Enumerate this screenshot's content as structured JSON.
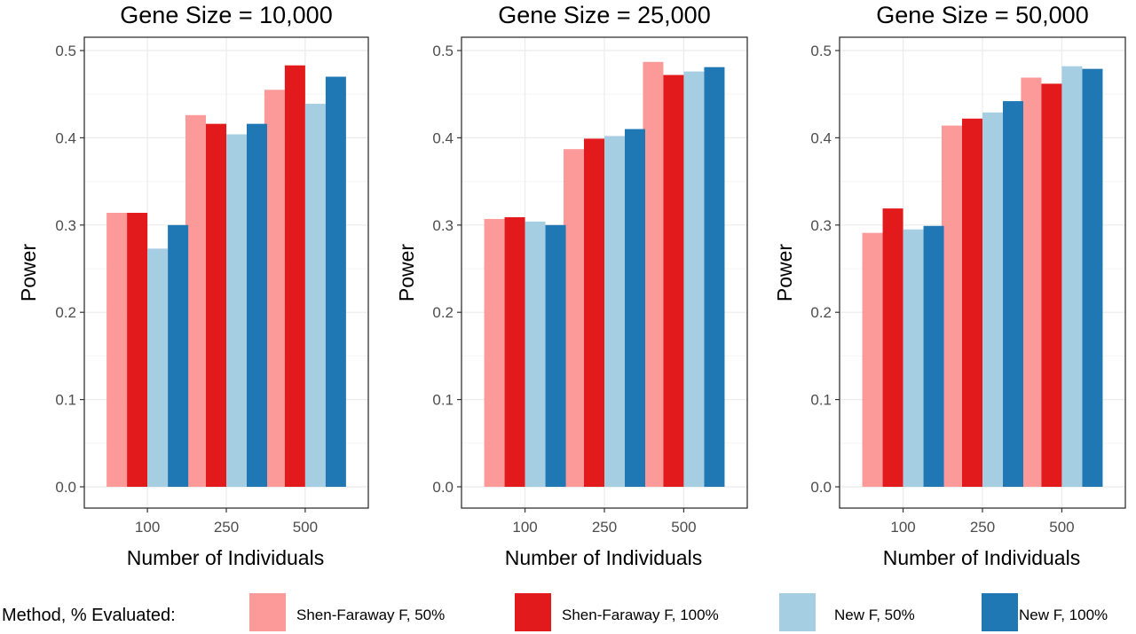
{
  "chart_data": [
    {
      "type": "bar",
      "title": "Gene Size = 10,000",
      "xlabel": "Number of Individuals",
      "ylabel": "Power",
      "ylim": [
        0,
        0.5
      ],
      "yticks": [
        "0.0",
        "0.1",
        "0.2",
        "0.3",
        "0.4",
        "0.5"
      ],
      "categories": [
        "100",
        "250",
        "500"
      ],
      "series": [
        {
          "name": "Shen-Faraway F, 50%",
          "values": [
            0.314,
            0.426,
            0.455
          ]
        },
        {
          "name": "Shen-Faraway F, 100%",
          "values": [
            0.314,
            0.416,
            0.483
          ]
        },
        {
          "name": "New F, 50%",
          "values": [
            0.273,
            0.404,
            0.439
          ]
        },
        {
          "name": "New F, 100%",
          "values": [
            0.3,
            0.416,
            0.47
          ]
        }
      ],
      "grid": true
    },
    {
      "type": "bar",
      "title": "Gene Size = 25,000",
      "xlabel": "Number of Individuals",
      "ylabel": "Power",
      "ylim": [
        0,
        0.5
      ],
      "yticks": [
        "0.0",
        "0.1",
        "0.2",
        "0.3",
        "0.4",
        "0.5"
      ],
      "categories": [
        "100",
        "250",
        "500"
      ],
      "series": [
        {
          "name": "Shen-Faraway F, 50%",
          "values": [
            0.307,
            0.387,
            0.487
          ]
        },
        {
          "name": "Shen-Faraway F, 100%",
          "values": [
            0.309,
            0.399,
            0.472
          ]
        },
        {
          "name": "New F, 50%",
          "values": [
            0.304,
            0.402,
            0.476
          ]
        },
        {
          "name": "New F, 100%",
          "values": [
            0.3,
            0.41,
            0.481
          ]
        }
      ],
      "grid": true
    },
    {
      "type": "bar",
      "title": "Gene Size = 50,000",
      "xlabel": "Number of Individuals",
      "ylabel": "Power",
      "ylim": [
        0,
        0.5
      ],
      "yticks": [
        "0.0",
        "0.1",
        "0.2",
        "0.3",
        "0.4",
        "0.5"
      ],
      "categories": [
        "100",
        "250",
        "500"
      ],
      "series": [
        {
          "name": "Shen-Faraway F, 50%",
          "values": [
            0.291,
            0.414,
            0.469
          ]
        },
        {
          "name": "Shen-Faraway F, 100%",
          "values": [
            0.319,
            0.422,
            0.462
          ]
        },
        {
          "name": "New F, 50%",
          "values": [
            0.295,
            0.429,
            0.482
          ]
        },
        {
          "name": "New F, 100%",
          "values": [
            0.299,
            0.442,
            0.479
          ]
        }
      ],
      "grid": true
    }
  ],
  "legend": {
    "title": "Method, % Evaluated:",
    "placement": "bottom",
    "items": [
      {
        "label": "Shen-Faraway F, 50%",
        "color": "#fb9a99"
      },
      {
        "label": "Shen-Faraway F, 100%",
        "color": "#e31a1c"
      },
      {
        "label": "New F, 50%",
        "color": "#a6cee3"
      },
      {
        "label": "New F, 100%",
        "color": "#1f78b4"
      }
    ]
  },
  "colors": {
    "panel_border": "#333333",
    "grid_major": "#ebebeb",
    "grid_minor": "#f5f5f5"
  }
}
